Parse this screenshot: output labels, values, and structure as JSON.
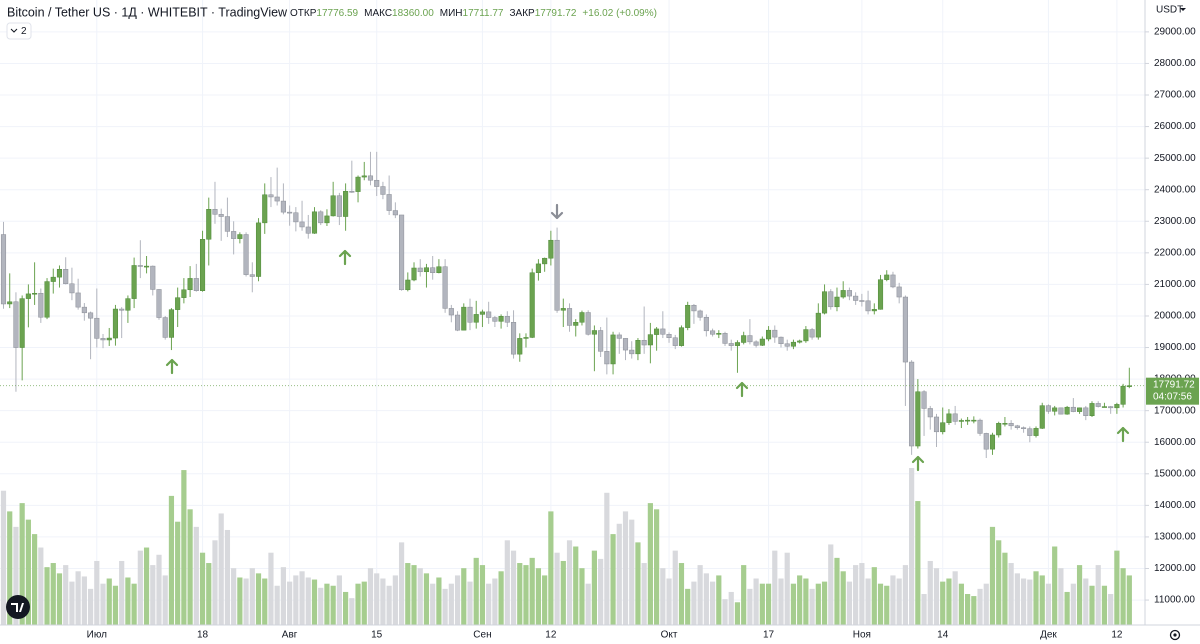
{
  "chart_data": {
    "type": "candlestick",
    "title": "Bitcoin / Tether US · 1Д · WHITEBIT · TradingView",
    "legend": [
      {
        "key": "ОТКР",
        "value": "17776.59"
      },
      {
        "key": "МАКС",
        "value": "18360.00"
      },
      {
        "key": "МИН",
        "value": "17711.77"
      },
      {
        "key": "ЗАКР",
        "value": "17791.72"
      }
    ],
    "change": "+16.02 (+0.09%)",
    "hidden_indicators": 2,
    "currency": "USDT",
    "countdown": "04:07:56",
    "up_color": "#6ba350",
    "down_color": "#b2b5be",
    "volume_up_color": "#a6cd8f",
    "volume_down_color": "#d8d9dd",
    "grid": true,
    "ylim": [
      10210,
      30010
    ],
    "yticks": [
      {
        "value": 11000,
        "label": "11000.00"
      },
      {
        "value": 12000,
        "label": "12000.00"
      },
      {
        "value": 13000,
        "label": "13000.00"
      },
      {
        "value": 14000,
        "label": "14000.00"
      },
      {
        "value": 15000,
        "label": "15000.00"
      },
      {
        "value": 16000,
        "label": "16000.00"
      },
      {
        "value": 17000,
        "label": "17000.00"
      },
      {
        "value": 18000,
        "label": "18000.00"
      },
      {
        "value": 19000,
        "label": "19000.00"
      },
      {
        "value": 20000,
        "label": "20000.00"
      },
      {
        "value": 21000,
        "label": "21000.00"
      },
      {
        "value": 22000,
        "label": "22000.00"
      },
      {
        "value": 23000,
        "label": "23000.00"
      },
      {
        "value": 24000,
        "label": "24000.00"
      },
      {
        "value": 25000,
        "label": "25000.00"
      },
      {
        "value": 26000,
        "label": "26000.00"
      },
      {
        "value": 27000,
        "label": "27000.00"
      },
      {
        "value": 28000,
        "label": "28000.00"
      },
      {
        "value": 29000,
        "label": "29000.00"
      }
    ],
    "categories": [
      null,
      null,
      null,
      null,
      null,
      null,
      null,
      null,
      null,
      null,
      null,
      null,
      null,
      null,
      null,
      "Июл",
      null,
      null,
      null,
      null,
      null,
      null,
      null,
      null,
      null,
      null,
      null,
      null,
      null,
      null,
      null,
      null,
      "18",
      null,
      null,
      null,
      null,
      null,
      null,
      null,
      null,
      null,
      null,
      null,
      null,
      null,
      "Авг",
      null,
      null,
      null,
      null,
      null,
      null,
      null,
      null,
      null,
      null,
      null,
      null,
      null,
      "15",
      null,
      null,
      null,
      null,
      null,
      null,
      null,
      null,
      null,
      null,
      null,
      null,
      null,
      null,
      null,
      null,
      "Сен",
      null,
      null,
      null,
      null,
      null,
      null,
      null,
      null,
      null,
      null,
      "12",
      null,
      null,
      null,
      null,
      null,
      null,
      null,
      null,
      null,
      null,
      null,
      null,
      null,
      null,
      null,
      null,
      null,
      null,
      "Окт",
      null,
      null,
      null,
      null,
      null,
      null,
      null,
      null,
      null,
      null,
      null,
      null,
      null,
      null,
      null,
      "17",
      null,
      null,
      null,
      null,
      null,
      null,
      null,
      null,
      null,
      null,
      null,
      null,
      null,
      null,
      "Ноя",
      null,
      null,
      null,
      null,
      null,
      null,
      null,
      null,
      null,
      null,
      null,
      null,
      "14",
      null,
      null,
      null,
      null,
      null,
      null,
      null,
      null,
      null,
      null,
      null,
      null,
      null,
      null,
      null,
      null,
      "Дек",
      null,
      null,
      null,
      null,
      null,
      null,
      null,
      null,
      null,
      null,
      "12",
      null,
      null
    ],
    "open": [
      22580,
      20380,
      20450,
      19000,
      20550,
      20700,
      20720,
      19960,
      21090,
      21230,
      21480,
      21020,
      20730,
      20280,
      20100,
      19930,
      19290,
      19240,
      19300,
      20220,
      20180,
      20550,
      21600,
      21580,
      21580,
      20840,
      19950,
      19320,
      20200,
      20580,
      20830,
      21190,
      20800,
      22430,
      23380,
      23220,
      23150,
      22680,
      22450,
      22580,
      21310,
      21250,
      22950,
      23840,
      23770,
      23640,
      23290,
      23270,
      22980,
      22820,
      22620,
      23300,
      22950,
      23170,
      23810,
      23150,
      23950,
      23940,
      24400,
      24440,
      24300,
      24100,
      23850,
      23340,
      23200,
      20830,
      21140,
      21520,
      21400,
      21530,
      21370,
      21560,
      20240,
      20030,
      19550,
      20280,
      19800,
      20050,
      20130,
      19950,
      19830,
      19990,
      19800,
      18790,
      19290,
      19320,
      21370,
      21650,
      21830,
      22400,
      20180,
      20240,
      19700,
      19800,
      20110,
      19420,
      19540,
      18880,
      18480,
      19400,
      19290,
      18920,
      18800,
      19230,
      19080,
      19410,
      19590,
      19420,
      19310,
      19060,
      19630,
      20340,
      20160,
      19960,
      19530,
      19420,
      19450,
      19130,
      19060,
      19160,
      19380,
      19180,
      19070,
      19270,
      19550,
      19330,
      19120,
      19040,
      19170,
      19210,
      19570,
      19330,
      20090,
      20770,
      20290,
      20600,
      20810,
      20630,
      20490,
      20480,
      20160,
      20210,
      21150,
      21300,
      20920,
      20600,
      18540,
      15880,
      17600,
      17070,
      16800,
      16330,
      16620,
      16900,
      16660,
      16690,
      16700,
      16700,
      16280,
      15780,
      16230,
      16600,
      16600,
      16520,
      16460,
      16430,
      16210,
      16440,
      17160,
      16980,
      17090,
      16890,
      17110,
      16970,
      17090,
      16840,
      17230,
      17130,
      17130,
      17090,
      17200,
      17776.59
    ],
    "high": [
      22980,
      21350,
      20750,
      20650,
      21000,
      21700,
      20870,
      21200,
      21500,
      21600,
      21860,
      21530,
      21180,
      20410,
      20140,
      20870,
      19430,
      19620,
      20350,
      20280,
      20650,
      21850,
      22400,
      21900,
      21600,
      20850,
      20000,
      20250,
      20900,
      21200,
      21580,
      21650,
      22700,
      23750,
      24250,
      23400,
      23750,
      23000,
      22650,
      22650,
      21700,
      23100,
      24200,
      24400,
      24700,
      24200,
      23500,
      23450,
      23650,
      23200,
      23450,
      23350,
      23380,
      24250,
      23900,
      24200,
      24920,
      24450,
      24880,
      25200,
      25200,
      24250,
      24450,
      23600,
      23200,
      21380,
      21700,
      21800,
      21650,
      21900,
      21800,
      21800,
      20350,
      20150,
      20400,
      20550,
      20480,
      20200,
      20450,
      20000,
      20050,
      20150,
      20180,
      19450,
      19450,
      21500,
      21800,
      21850,
      22700,
      22800,
      20550,
      20400,
      19900,
      20170,
      20180,
      19700,
      19650,
      19950,
      19500,
      19480,
      19300,
      19200,
      19300,
      20300,
      19780,
      19650,
      20150,
      19480,
      19400,
      19700,
      20450,
      20380,
      20200,
      20050,
      19600,
      19550,
      19500,
      19250,
      19230,
      19500,
      19900,
      19230,
      19350,
      19680,
      19700,
      19350,
      19250,
      19250,
      19250,
      19680,
      19620,
      20400,
      21000,
      20850,
      20900,
      21100,
      20900,
      20750,
      20700,
      20800,
      20400,
      21300,
      21450,
      21400,
      21050,
      20650,
      18600,
      18000,
      17650,
      17150,
      16900,
      17100,
      17050,
      17150,
      16750,
      16800,
      16820,
      16750,
      16300,
      16300,
      16650,
      16800,
      16700,
      16550,
      16500,
      16500,
      16500,
      17250,
      17200,
      17150,
      17100,
      17150,
      17400,
      17100,
      17150,
      17300,
      17300,
      17250,
      17150,
      17250,
      17850,
      18360
    ],
    "low": [
      20230,
      20250,
      17600,
      17960,
      19640,
      20350,
      19780,
      19900,
      20710,
      20900,
      21000,
      20500,
      20200,
      19850,
      18630,
      19000,
      18980,
      19050,
      19060,
      19300,
      19780,
      20250,
      21200,
      21350,
      20650,
      19880,
      19250,
      18920,
      19650,
      20400,
      20600,
      20770,
      20770,
      21600,
      22920,
      22380,
      22500,
      21950,
      22300,
      21250,
      20750,
      21100,
      22600,
      23450,
      23500,
      23220,
      22860,
      22680,
      22700,
      22450,
      22600,
      22880,
      22850,
      23150,
      22880,
      22700,
      23900,
      23600,
      24300,
      24140,
      23800,
      23700,
      23200,
      23100,
      20800,
      20780,
      21100,
      21250,
      20900,
      21150,
      21350,
      20100,
      19800,
      19520,
      19550,
      19550,
      19600,
      19650,
      19750,
      19650,
      19600,
      19650,
      18650,
      18550,
      19000,
      19300,
      21120,
      21400,
      21600,
      20100,
      19650,
      19500,
      19350,
      19700,
      19380,
      18250,
      18700,
      18150,
      18150,
      18800,
      18600,
      18650,
      18600,
      18800,
      18500,
      18900,
      19300,
      19150,
      18950,
      19030,
      19550,
      19750,
      19850,
      19350,
      19350,
      19300,
      19050,
      18900,
      18200,
      19100,
      19100,
      19000,
      19050,
      19200,
      19150,
      19000,
      18900,
      18950,
      19130,
      19150,
      19250,
      19250,
      20050,
      20200,
      20150,
      20550,
      20500,
      20350,
      20300,
      20050,
      20050,
      20200,
      21100,
      20880,
      20400,
      17150,
      15600,
      15800,
      16200,
      16400,
      15850,
      16250,
      16550,
      16550,
      16450,
      16550,
      16600,
      16200,
      15500,
      15600,
      16150,
      16500,
      16400,
      16400,
      16300,
      16000,
      16150,
      16420,
      16900,
      16850,
      16880,
      16870,
      16950,
      16900,
      16700,
      16800,
      17100,
      17100,
      16900,
      16900,
      17100,
      17711.77
    ],
    "close": [
      20380,
      20450,
      19000,
      20550,
      20700,
      20720,
      19960,
      21090,
      21230,
      21480,
      21020,
      20730,
      20280,
      20100,
      19930,
      19290,
      19240,
      19300,
      20220,
      20180,
      20550,
      21600,
      21580,
      21580,
      20840,
      19950,
      19320,
      20200,
      20580,
      20830,
      21190,
      20800,
      22430,
      23380,
      23220,
      23150,
      22680,
      22450,
      22580,
      21310,
      21250,
      22950,
      23840,
      23770,
      23640,
      23290,
      23270,
      22980,
      22820,
      22620,
      23300,
      22950,
      23170,
      23810,
      23150,
      23950,
      23940,
      24400,
      24440,
      24300,
      24100,
      23850,
      23340,
      23200,
      20830,
      21140,
      21520,
      21400,
      21530,
      21370,
      21560,
      20240,
      20030,
      19550,
      20280,
      19800,
      20050,
      20130,
      19950,
      19830,
      19990,
      19800,
      18790,
      19290,
      19320,
      21370,
      21650,
      21830,
      22400,
      20180,
      20240,
      19700,
      19800,
      20110,
      19420,
      19540,
      18880,
      18480,
      19400,
      19290,
      18920,
      18800,
      19230,
      19080,
      19410,
      19590,
      19420,
      19310,
      19060,
      19630,
      20340,
      20160,
      19960,
      19530,
      19420,
      19450,
      19130,
      19060,
      19160,
      19380,
      19180,
      19070,
      19270,
      19550,
      19330,
      19120,
      19040,
      19170,
      19210,
      19570,
      19330,
      20090,
      20770,
      20290,
      20600,
      20810,
      20630,
      20490,
      20480,
      20160,
      20210,
      21150,
      21300,
      20920,
      20600,
      18540,
      15880,
      17600,
      17070,
      16800,
      16330,
      16620,
      16900,
      16660,
      16690,
      16700,
      16700,
      16280,
      15780,
      16230,
      16600,
      16600,
      16520,
      16460,
      16430,
      16210,
      16440,
      17160,
      16980,
      17090,
      16890,
      17110,
      16970,
      17090,
      16840,
      17230,
      17130,
      17130,
      17090,
      17200,
      17775.7,
      17791.72
    ],
    "volume": [
      130,
      110,
      95,
      118,
      102,
      88,
      75,
      56,
      60,
      50,
      58,
      42,
      52,
      47,
      35,
      62,
      40,
      45,
      38,
      62,
      46,
      40,
      72,
      75,
      58,
      68,
      48,
      125,
      100,
      150,
      112,
      95,
      70,
      60,
      82,
      108,
      92,
      55,
      46,
      45,
      55,
      50,
      45,
      70,
      38,
      56,
      42,
      48,
      52,
      46,
      44,
      36,
      40,
      38,
      48,
      32,
      26,
      40,
      42,
      55,
      50,
      45,
      38,
      48,
      80,
      60,
      58,
      55,
      50,
      40,
      46,
      35,
      40,
      48,
      55,
      42,
      65,
      58,
      40,
      45,
      52,
      82,
      72,
      60,
      58,
      65,
      55,
      48,
      110,
      70,
      62,
      82,
      76,
      55,
      40,
      72,
      64,
      128,
      88,
      98,
      110,
      102,
      80,
      60,
      118,
      112,
      55,
      45,
      72,
      60,
      35,
      42,
      58,
      50,
      42,
      48,
      25,
      32,
      22,
      58,
      35,
      45,
      40,
      40,
      72,
      45,
      70,
      40,
      48,
      45,
      35,
      40,
      42,
      78,
      65,
      52,
      42,
      58,
      60,
      45,
      56,
      40,
      38,
      48,
      45,
      58,
      152,
      120,
      30,
      62,
      55,
      42,
      45,
      52,
      40,
      30,
      28,
      35,
      40,
      95,
      82,
      70,
      60,
      50,
      45,
      44,
      52,
      48,
      40,
      76,
      55,
      32,
      40,
      58,
      45,
      38,
      58,
      38,
      30,
      72,
      55,
      48
    ]
  }
}
